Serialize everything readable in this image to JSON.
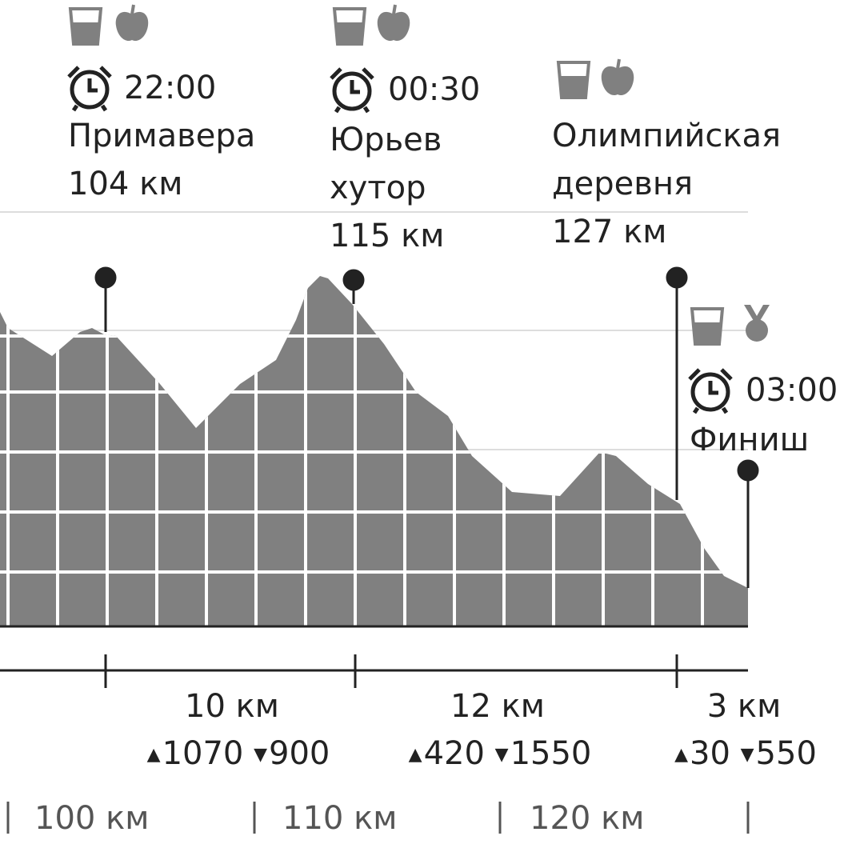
{
  "checkpoints": [
    {
      "time": "22:00",
      "name": "Примавера",
      "distance": "104 км"
    },
    {
      "time": "00:30",
      "name": "Юрьев хутор",
      "distance": "115 км"
    },
    {
      "name": "Олимпийская деревня",
      "distance": "127 км"
    }
  ],
  "finish": {
    "time": "03:00",
    "name": "Финиш"
  },
  "segments": [
    {
      "distance": "10 км",
      "ascent": "1070",
      "descent": "900"
    },
    {
      "distance": "12 км",
      "ascent": "420",
      "descent": "1550"
    },
    {
      "distance": "3 км",
      "ascent": "30",
      "descent": "550"
    }
  ],
  "distance_axis": [
    "100 км",
    "110 км",
    "120 км"
  ]
}
